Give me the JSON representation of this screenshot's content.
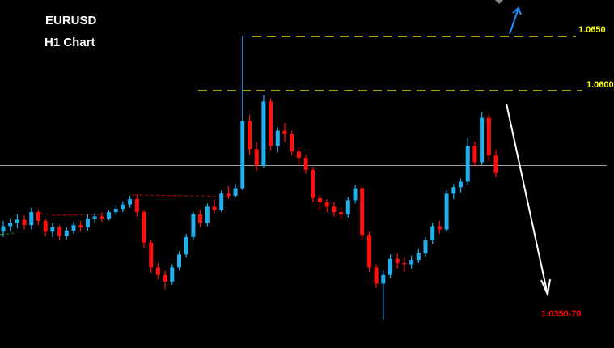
{
  "header": {
    "symbol": "EURUSD",
    "timeframe": "H1 Chart"
  },
  "colors": {
    "bull": "#1fb0f0",
    "bear": "#ff1010",
    "level": "#ffff00",
    "target": "#ff0000",
    "up_arrow": "#1e90ff",
    "down_arrow": "#ffffff"
  },
  "chart_data": {
    "type": "candlestick",
    "title": "EURUSD",
    "subtitle": "H1 Chart",
    "grid": false,
    "levels": [
      {
        "label": "1.0650",
        "value": 1.065
      },
      {
        "label": "1.0600",
        "value": 1.06
      }
    ],
    "current_price_line": 1.0531,
    "target": {
      "label": "1.0350-70"
    },
    "candles": [
      [
        1.047,
        1.048,
        1.0465,
        1.0475
      ],
      [
        1.0475,
        1.0482,
        1.047,
        1.0478
      ],
      [
        1.0478,
        1.0486,
        1.0473,
        1.0481
      ],
      [
        1.0481,
        1.0485,
        1.0472,
        1.0476
      ],
      [
        1.0476,
        1.0492,
        1.0472,
        1.0488
      ],
      [
        1.0488,
        1.049,
        1.0476,
        1.048
      ],
      [
        1.048,
        1.0482,
        1.0466,
        1.047
      ],
      [
        1.047,
        1.0478,
        1.0465,
        1.0474
      ],
      [
        1.0474,
        1.0476,
        1.0462,
        1.0466
      ],
      [
        1.0466,
        1.0474,
        1.0463,
        1.0471
      ],
      [
        1.0471,
        1.0479,
        1.0468,
        1.0476
      ],
      [
        1.0476,
        1.048,
        1.047,
        1.0474
      ],
      [
        1.0474,
        1.0486,
        1.0471,
        1.0482
      ],
      [
        1.0482,
        1.0487,
        1.0478,
        1.0484
      ],
      [
        1.0484,
        1.0488,
        1.0479,
        1.0482
      ],
      [
        1.0482,
        1.049,
        1.048,
        1.0488
      ],
      [
        1.0488,
        1.0494,
        1.0485,
        1.0491
      ],
      [
        1.0491,
        1.0498,
        1.0488,
        1.0495
      ],
      [
        1.0495,
        1.0503,
        1.0492,
        1.05
      ],
      [
        1.05,
        1.0504,
        1.0484,
        1.0488
      ],
      [
        1.0488,
        1.049,
        1.0455,
        1.046
      ],
      [
        1.046,
        1.0463,
        1.0432,
        1.0437
      ],
      [
        1.0437,
        1.0441,
        1.0426,
        1.043
      ],
      [
        1.043,
        1.0434,
        1.0417,
        1.0424
      ],
      [
        1.0424,
        1.044,
        1.0421,
        1.0437
      ],
      [
        1.0437,
        1.0452,
        1.0434,
        1.0449
      ],
      [
        1.0449,
        1.0468,
        1.0446,
        1.0465
      ],
      [
        1.0465,
        1.0488,
        1.0462,
        1.0486
      ],
      [
        1.0486,
        1.049,
        1.0474,
        1.0478
      ],
      [
        1.0478,
        1.0496,
        1.0475,
        1.0493
      ],
      [
        1.0493,
        1.05,
        1.0487,
        1.049
      ],
      [
        1.049,
        1.0508,
        1.0488,
        1.0505
      ],
      [
        1.0505,
        1.0512,
        1.05,
        1.0503
      ],
      [
        1.0503,
        1.0514,
        1.0501,
        1.051
      ],
      [
        1.051,
        1.065,
        1.0508,
        1.0572
      ],
      [
        1.0572,
        1.0578,
        1.054,
        1.0546
      ],
      [
        1.0546,
        1.0552,
        1.0526,
        1.0531
      ],
      [
        1.0531,
        1.0596,
        1.0529,
        1.059
      ],
      [
        1.059,
        1.0593,
        1.0545,
        1.0549
      ],
      [
        1.0549,
        1.0566,
        1.0543,
        1.0563
      ],
      [
        1.0563,
        1.057,
        1.0552,
        1.056
      ],
      [
        1.056,
        1.0563,
        1.054,
        1.0544
      ],
      [
        1.0544,
        1.0548,
        1.0532,
        1.0538
      ],
      [
        1.0538,
        1.0541,
        1.0523,
        1.0527
      ],
      [
        1.0527,
        1.053,
        1.0497,
        1.0501
      ],
      [
        1.0501,
        1.0504,
        1.049,
        1.0497
      ],
      [
        1.0497,
        1.05,
        1.0488,
        1.0493
      ],
      [
        1.0493,
        1.0497,
        1.0484,
        1.0488
      ],
      [
        1.0488,
        1.0492,
        1.0481,
        1.0486
      ],
      [
        1.0486,
        1.0502,
        1.0483,
        1.0499
      ],
      [
        1.0499,
        1.0513,
        1.0496,
        1.051
      ],
      [
        1.051,
        1.0512,
        1.0463,
        1.0467
      ],
      [
        1.0467,
        1.047,
        1.0433,
        1.0437
      ],
      [
        1.0437,
        1.044,
        1.0418,
        1.0422
      ],
      [
        1.0422,
        1.0434,
        1.0389,
        1.043
      ],
      [
        1.043,
        1.0449,
        1.0427,
        1.0445
      ],
      [
        1.0445,
        1.045,
        1.0436,
        1.0441
      ],
      [
        1.0441,
        1.0446,
        1.0433,
        1.044
      ],
      [
        1.044,
        1.0448,
        1.0436,
        1.0444
      ],
      [
        1.0444,
        1.0454,
        1.0441,
        1.045
      ],
      [
        1.045,
        1.0465,
        1.0447,
        1.0462
      ],
      [
        1.0462,
        1.0478,
        1.0459,
        1.0475
      ],
      [
        1.0475,
        1.048,
        1.0468,
        1.0472
      ],
      [
        1.0472,
        1.0508,
        1.047,
        1.0505
      ],
      [
        1.0505,
        1.0514,
        1.05,
        1.0511
      ],
      [
        1.0511,
        1.0519,
        1.0506,
        1.0516
      ],
      [
        1.0516,
        1.0557,
        1.0513,
        1.0549
      ],
      [
        1.0549,
        1.0553,
        1.053,
        1.0534
      ],
      [
        1.0534,
        1.058,
        1.0531,
        1.0575
      ],
      [
        1.0575,
        1.0578,
        1.0535,
        1.054
      ],
      [
        1.054,
        1.0545,
        1.052,
        1.0524
      ]
    ]
  }
}
